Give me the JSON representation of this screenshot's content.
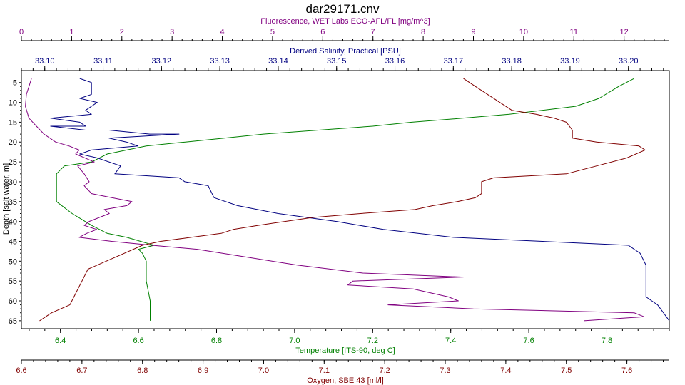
{
  "chart_data": {
    "type": "line",
    "title": "dar29171.cnv",
    "y_axis": {
      "label": "Depth [salt water, m]",
      "range": [
        2,
        67
      ],
      "inverted": true,
      "ticks": [
        5,
        10,
        15,
        20,
        25,
        30,
        35,
        40,
        45,
        50,
        55,
        60,
        65
      ]
    },
    "x_axes": [
      {
        "id": "fluor",
        "position": "top-1",
        "label": "Fluorescence, WET Labs ECO-AFL/FL [mg/m^3]",
        "color": "#800080",
        "range": [
          0,
          12.9
        ],
        "ticks": [
          0,
          1,
          2,
          3,
          4,
          5,
          6,
          7,
          8,
          9,
          10,
          11,
          12
        ],
        "tick_labels": [
          "0",
          "1",
          "2",
          "3",
          "4",
          "5",
          "6",
          "7",
          "8",
          "9",
          "10",
          "11",
          "12"
        ]
      },
      {
        "id": "sal",
        "position": "top-2",
        "label": "Derived Salinity, Practical [PSU]",
        "color": "#000080",
        "range": [
          33.096,
          33.207
        ],
        "ticks": [
          33.1,
          33.11,
          33.12,
          33.13,
          33.14,
          33.15,
          33.16,
          33.17,
          33.18,
          33.19,
          33.2
        ],
        "tick_labels": [
          "33.10",
          "33.11",
          "33.12",
          "33.13",
          "33.14",
          "33.15",
          "33.16",
          "33.17",
          "33.18",
          "33.19",
          "33.20"
        ]
      },
      {
        "id": "temp",
        "position": "bottom-1",
        "label": "Temperature [ITS-90, deg C]",
        "color": "#008000",
        "range": [
          6.3,
          7.96
        ],
        "ticks": [
          6.4,
          6.6,
          6.8,
          7.0,
          7.2,
          7.4,
          7.6,
          7.8
        ],
        "tick_labels": [
          "6.4",
          "6.6",
          "6.8",
          "7.0",
          "7.2",
          "7.4",
          "7.6",
          "7.8"
        ]
      },
      {
        "id": "oxy",
        "position": "bottom-2",
        "label": "Oxygen, SBE 43 [ml/l]",
        "color": "#800000",
        "range": [
          6.6,
          7.67
        ],
        "ticks": [
          6.6,
          6.7,
          6.8,
          6.9,
          7.0,
          7.1,
          7.2,
          7.3,
          7.4,
          7.5,
          7.6
        ],
        "tick_labels": [
          "6.6",
          "6.7",
          "6.8",
          "6.9",
          "7.0",
          "7.1",
          "7.2",
          "7.3",
          "7.4",
          "7.5",
          "7.6"
        ]
      }
    ],
    "series": [
      {
        "axis": "temp",
        "color": "#008000",
        "points": [
          [
            7.87,
            4
          ],
          [
            7.83,
            6
          ],
          [
            7.78,
            9
          ],
          [
            7.72,
            11
          ],
          [
            7.55,
            13
          ],
          [
            7.43,
            14
          ],
          [
            7.3,
            15
          ],
          [
            7.2,
            16
          ],
          [
            6.92,
            18
          ],
          [
            6.82,
            19
          ],
          [
            6.72,
            20
          ],
          [
            6.62,
            21
          ],
          [
            6.57,
            22
          ],
          [
            6.52,
            23
          ],
          [
            6.48,
            25
          ],
          [
            6.41,
            26
          ],
          [
            6.39,
            28
          ],
          [
            6.39,
            30
          ],
          [
            6.39,
            35
          ],
          [
            6.43,
            38
          ],
          [
            6.48,
            41
          ],
          [
            6.52,
            43
          ],
          [
            6.57,
            44
          ],
          [
            6.64,
            46
          ],
          [
            6.6,
            47
          ],
          [
            6.61,
            48
          ],
          [
            6.62,
            50
          ],
          [
            6.62,
            55
          ],
          [
            6.63,
            60
          ],
          [
            6.63,
            65
          ]
        ]
      },
      {
        "axis": "sal",
        "color": "#000080",
        "points": [
          [
            33.106,
            4
          ],
          [
            33.108,
            5
          ],
          [
            33.108,
            8
          ],
          [
            33.106,
            9
          ],
          [
            33.109,
            10
          ],
          [
            33.107,
            12
          ],
          [
            33.108,
            13
          ],
          [
            33.101,
            14
          ],
          [
            33.106,
            15
          ],
          [
            33.107,
            16
          ],
          [
            33.101,
            16
          ],
          [
            33.107,
            17
          ],
          [
            33.111,
            17
          ],
          [
            33.118,
            18
          ],
          [
            33.123,
            18
          ],
          [
            33.111,
            19
          ],
          [
            33.114,
            20
          ],
          [
            33.116,
            21
          ],
          [
            33.108,
            22
          ],
          [
            33.106,
            23
          ],
          [
            33.109,
            24
          ],
          [
            33.113,
            26
          ],
          [
            33.112,
            28
          ],
          [
            33.123,
            29
          ],
          [
            33.124,
            30
          ],
          [
            33.128,
            31
          ],
          [
            33.129,
            34
          ],
          [
            33.133,
            36
          ],
          [
            33.14,
            38
          ],
          [
            33.15,
            40
          ],
          [
            33.158,
            42
          ],
          [
            33.17,
            44
          ],
          [
            33.2,
            46
          ],
          [
            33.202,
            48
          ],
          [
            33.203,
            51
          ],
          [
            33.203,
            55
          ],
          [
            33.203,
            59
          ],
          [
            33.205,
            61
          ],
          [
            33.206,
            63
          ],
          [
            33.207,
            65
          ]
        ]
      },
      {
        "axis": "fluor",
        "color": "#800080",
        "points": [
          [
            0.2,
            4
          ],
          [
            0.15,
            6
          ],
          [
            0.1,
            8
          ],
          [
            0.08,
            11
          ],
          [
            0.15,
            14
          ],
          [
            0.3,
            16
          ],
          [
            0.45,
            18
          ],
          [
            0.68,
            20
          ],
          [
            0.95,
            21
          ],
          [
            1.15,
            22
          ],
          [
            1.08,
            23
          ],
          [
            1.45,
            25
          ],
          [
            1.12,
            26
          ],
          [
            1.25,
            28
          ],
          [
            1.35,
            30
          ],
          [
            1.25,
            31
          ],
          [
            1.4,
            33
          ],
          [
            1.8,
            34
          ],
          [
            2.2,
            35
          ],
          [
            2.1,
            36
          ],
          [
            1.65,
            37
          ],
          [
            1.75,
            38
          ],
          [
            1.35,
            40
          ],
          [
            1.25,
            41
          ],
          [
            1.5,
            42
          ],
          [
            1.3,
            43
          ],
          [
            1.15,
            44
          ],
          [
            1.8,
            45
          ],
          [
            2.6,
            46
          ],
          [
            3.5,
            47
          ],
          [
            4.5,
            49
          ],
          [
            5.5,
            51
          ],
          [
            6.8,
            53
          ],
          [
            8.8,
            54
          ],
          [
            6.6,
            55
          ],
          [
            6.5,
            56
          ],
          [
            7.8,
            57
          ],
          [
            8.5,
            59
          ],
          [
            8.7,
            60
          ],
          [
            7.3,
            61
          ],
          [
            9,
            62
          ],
          [
            12.2,
            63
          ],
          [
            12.4,
            64
          ],
          [
            11.2,
            65
          ]
        ]
      },
      {
        "axis": "oxy",
        "color": "#800000",
        "points": [
          [
            7.33,
            4
          ],
          [
            7.35,
            6
          ],
          [
            7.37,
            8
          ],
          [
            7.39,
            10
          ],
          [
            7.41,
            12
          ],
          [
            7.45,
            13
          ],
          [
            7.48,
            14
          ],
          [
            7.5,
            15
          ],
          [
            7.51,
            17
          ],
          [
            7.51,
            19
          ],
          [
            7.55,
            20
          ],
          [
            7.62,
            21
          ],
          [
            7.63,
            22
          ],
          [
            7.6,
            24
          ],
          [
            7.55,
            26
          ],
          [
            7.5,
            28
          ],
          [
            7.38,
            29
          ],
          [
            7.36,
            30
          ],
          [
            7.36,
            33
          ],
          [
            7.35,
            34
          ],
          [
            7.32,
            35
          ],
          [
            7.28,
            36
          ],
          [
            7.25,
            37
          ],
          [
            7.16,
            38
          ],
          [
            7.08,
            39
          ],
          [
            6.99,
            41
          ],
          [
            6.95,
            42
          ],
          [
            6.93,
            43
          ],
          [
            6.88,
            44
          ],
          [
            6.83,
            45
          ],
          [
            6.8,
            46
          ],
          [
            6.77,
            48
          ],
          [
            6.74,
            50
          ],
          [
            6.71,
            52
          ],
          [
            6.7,
            55
          ],
          [
            6.69,
            58
          ],
          [
            6.68,
            61
          ],
          [
            6.65,
            63
          ],
          [
            6.63,
            65
          ]
        ]
      }
    ]
  }
}
